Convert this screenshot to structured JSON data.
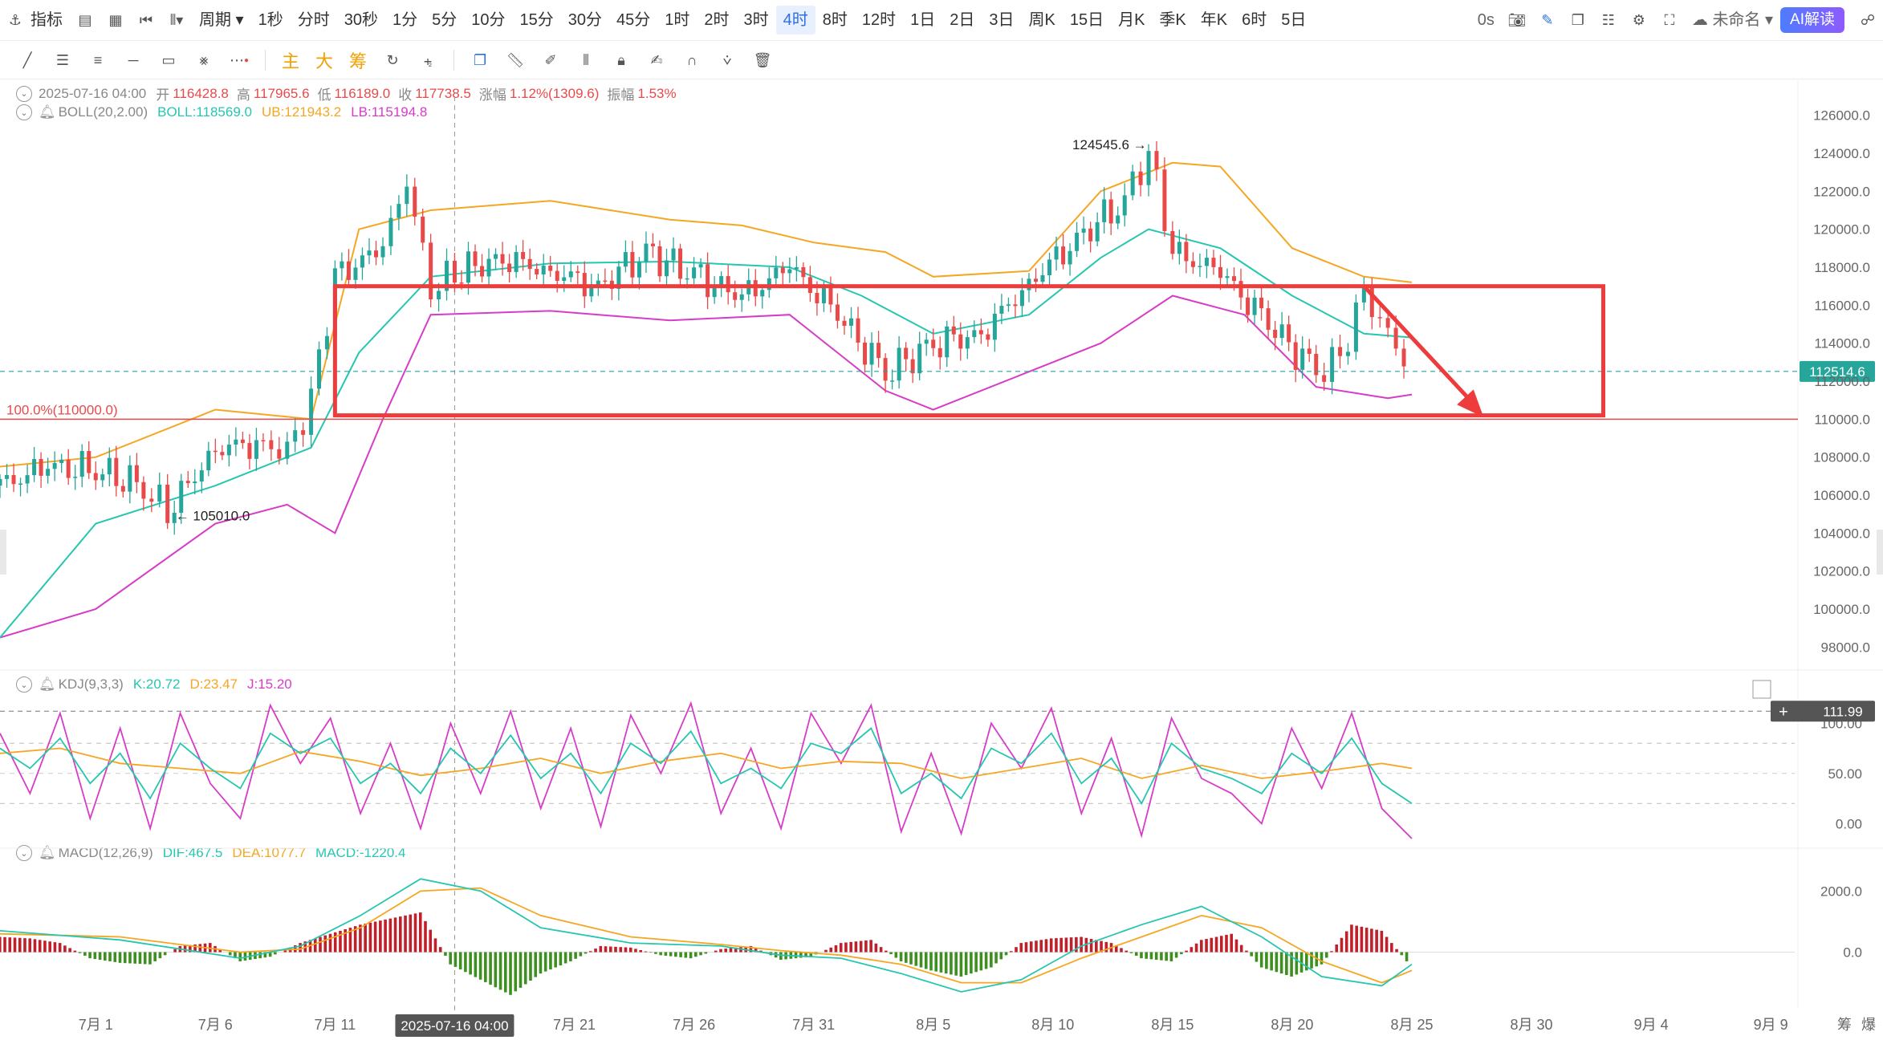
{
  "toolbar": {
    "left_items": [
      "指标",
      "周期"
    ],
    "periods": [
      "1秒",
      "分时",
      "30秒",
      "1分",
      "5分",
      "10分",
      "15分",
      "30分",
      "45分",
      "1时",
      "2时",
      "3时",
      "4时",
      "8时",
      "12时",
      "1日",
      "2日",
      "3日",
      "周K",
      "15日",
      "月K",
      "季K",
      "年K",
      "6时",
      "5日"
    ],
    "active_period": "4时",
    "countdown": "0s",
    "layout_name": "未命名",
    "ai_button": "AI解读"
  },
  "drawbar": {
    "chips": [
      "主",
      "大",
      "筹"
    ]
  },
  "ohlc": {
    "datetime": "2025-07-16 04:00",
    "open_label": "开",
    "open": "116428.8",
    "high_label": "高",
    "high": "117965.6",
    "low_label": "低",
    "low": "116189.0",
    "close_label": "收",
    "close": "117738.5",
    "change_label": "涨幅",
    "change": "1.12%(1309.6)",
    "amp_label": "振幅",
    "amp": "1.53%"
  },
  "boll": {
    "name": "BOLL(20,2.00)",
    "mid": "BOLL:118569.0",
    "ub": "UB:121943.2",
    "lb": "LB:115194.8"
  },
  "kdj": {
    "name": "KDJ(9,3,3)",
    "k": "K:20.72",
    "d": "D:23.47",
    "j": "J:15.20"
  },
  "macd": {
    "name": "MACD(12,26,9)",
    "dif": "DIF:467.5",
    "dea": "DEA:1077.7",
    "macd": "MACD:-1220.4"
  },
  "price_axis": {
    "ticks": [
      "126000.0",
      "124000.0",
      "122000.0",
      "120000.0",
      "118000.0",
      "116000.0",
      "114000.0",
      "112000.0",
      "110000.0",
      "108000.0",
      "106000.0",
      "104000.0",
      "102000.0",
      "100000.0",
      "98000.0"
    ],
    "current_price": "112514.6"
  },
  "kdj_axis": {
    "ticks": [
      "100.00",
      "50.00",
      "0.00"
    ],
    "crosshair_value": "111.99"
  },
  "macd_axis": {
    "ticks": [
      "2000.0",
      "0.0"
    ]
  },
  "time_axis": {
    "ticks": [
      "7月 1",
      "7月 6",
      "7月 11",
      "7月 21",
      "7月 26",
      "7月 31",
      "8月 5",
      "8月 10",
      "8月 15",
      "8月 20",
      "8月 25",
      "8月 30",
      "9月 4",
      "9月 9"
    ],
    "crosshair_label": "2025-07-16 04:00",
    "corner_labels": [
      "筹",
      "爆"
    ]
  },
  "annotations": {
    "high_marker": "124545.6",
    "low_marker": "105010.0",
    "fib_level": "100.0%(110000.0)"
  },
  "colors": {
    "up": "#26a69a",
    "down": "#e84a4a",
    "boll_mid": "#26c6b0",
    "boll_ub": "#f5a623",
    "boll_lb": "#d63cc8",
    "box": "#ee3b3b",
    "accent": "#2f6fe4"
  },
  "chart_data": {
    "type": "candlestick",
    "title": "",
    "interval": "4时",
    "y_range": [
      97000,
      127000
    ],
    "x_range": [
      "2025-06-27",
      "2025-09-10"
    ],
    "boll_mid_path": [
      [
        "2025-06-27",
        98500
      ],
      [
        "2025-07-01",
        104500
      ],
      [
        "2025-07-06",
        106500
      ],
      [
        "2025-07-10",
        108500
      ],
      [
        "2025-07-12",
        113500
      ],
      [
        "2025-07-15",
        117500
      ],
      [
        "2025-07-20",
        118200
      ],
      [
        "2025-07-25",
        118300
      ],
      [
        "2025-07-30",
        118000
      ],
      [
        "2025-08-02",
        116500
      ],
      [
        "2025-08-05",
        114500
      ],
      [
        "2025-08-09",
        115500
      ],
      [
        "2025-08-12",
        118500
      ],
      [
        "2025-08-14",
        120000
      ],
      [
        "2025-08-17",
        119000
      ],
      [
        "2025-08-20",
        116500
      ],
      [
        "2025-08-23",
        114500
      ],
      [
        "2025-08-25",
        114300
      ]
    ],
    "boll_ub_path": [
      [
        "2025-06-27",
        107500
      ],
      [
        "2025-07-01",
        108000
      ],
      [
        "2025-07-06",
        110500
      ],
      [
        "2025-07-10",
        110000
      ],
      [
        "2025-07-12",
        120000
      ],
      [
        "2025-07-15",
        121000
      ],
      [
        "2025-07-20",
        121500
      ],
      [
        "2025-07-25",
        120500
      ],
      [
        "2025-07-28",
        120200
      ],
      [
        "2025-07-31",
        119300
      ],
      [
        "2025-08-03",
        118800
      ],
      [
        "2025-08-05",
        117500
      ],
      [
        "2025-08-09",
        117800
      ],
      [
        "2025-08-12",
        122000
      ],
      [
        "2025-08-15",
        123500
      ],
      [
        "2025-08-17",
        123300
      ],
      [
        "2025-08-20",
        119000
      ],
      [
        "2025-08-23",
        117500
      ],
      [
        "2025-08-25",
        117200
      ]
    ],
    "boll_lb_path": [
      [
        "2025-06-27",
        98500
      ],
      [
        "2025-07-01",
        100000
      ],
      [
        "2025-07-06",
        104500
      ],
      [
        "2025-07-09",
        105500
      ],
      [
        "2025-07-11",
        104000
      ],
      [
        "2025-07-13",
        110000
      ],
      [
        "2025-07-15",
        115500
      ],
      [
        "2025-07-20",
        115700
      ],
      [
        "2025-07-25",
        115200
      ],
      [
        "2025-07-30",
        115500
      ],
      [
        "2025-08-03",
        111500
      ],
      [
        "2025-08-05",
        110500
      ],
      [
        "2025-08-09",
        112500
      ],
      [
        "2025-08-12",
        114000
      ],
      [
        "2025-08-15",
        116500
      ],
      [
        "2025-08-18",
        115500
      ],
      [
        "2025-08-21",
        111700
      ],
      [
        "2025-08-24",
        111100
      ],
      [
        "2025-08-25",
        111300
      ]
    ],
    "close_path": [
      [
        "2025-06-27",
        106500
      ],
      [
        "2025-06-29",
        107500
      ],
      [
        "2025-07-01",
        107300
      ],
      [
        "2025-07-03",
        106500
      ],
      [
        "2025-07-04",
        105100
      ],
      [
        "2025-07-06",
        108500
      ],
      [
        "2025-07-08",
        108700
      ],
      [
        "2025-07-09",
        108300
      ],
      [
        "2025-07-10",
        111000
      ],
      [
        "2025-07-11",
        117500
      ],
      [
        "2025-07-13",
        119000
      ],
      [
        "2025-07-14",
        122500
      ],
      [
        "2025-07-15",
        116800
      ],
      [
        "2025-07-16",
        117700
      ],
      [
        "2025-07-18",
        118500
      ],
      [
        "2025-07-20",
        117800
      ],
      [
        "2025-07-22",
        117000
      ],
      [
        "2025-07-24",
        118800
      ],
      [
        "2025-07-26",
        117600
      ],
      [
        "2025-07-28",
        116400
      ],
      [
        "2025-07-30",
        118000
      ],
      [
        "2025-08-01",
        115500
      ],
      [
        "2025-08-03",
        112400
      ],
      [
        "2025-08-05",
        114000
      ],
      [
        "2025-08-07",
        114500
      ],
      [
        "2025-08-09",
        117200
      ],
      [
        "2025-08-11",
        119500
      ],
      [
        "2025-08-13",
        121500
      ],
      [
        "2025-08-14",
        124000
      ],
      [
        "2025-08-15",
        118800
      ],
      [
        "2025-08-17",
        117700
      ],
      [
        "2025-08-19",
        115000
      ],
      [
        "2025-08-21",
        112500
      ],
      [
        "2025-08-22",
        113300
      ],
      [
        "2025-08-23",
        116800
      ],
      [
        "2025-08-24",
        114500
      ],
      [
        "2025-08-25",
        112514.6
      ]
    ],
    "highlight_box": {
      "x_start": "2025-07-11",
      "x_end": "2025-09-02",
      "y_low": 110200,
      "y_high": 117000
    },
    "arrow": {
      "from": [
        "2025-08-23",
        117000
      ],
      "to": [
        "2025-08-28",
        110100
      ]
    },
    "fib_line": 110000,
    "current_line": 112514.6,
    "kdj_range": [
      -15,
      125
    ],
    "kdj_k_path": [
      [
        0,
        75
      ],
      [
        1,
        55
      ],
      [
        2,
        85
      ],
      [
        3,
        40
      ],
      [
        4,
        70
      ],
      [
        5,
        25
      ],
      [
        6,
        80
      ],
      [
        7,
        55
      ],
      [
        8,
        35
      ],
      [
        9,
        90
      ],
      [
        10,
        70
      ],
      [
        11,
        85
      ],
      [
        12,
        40
      ],
      [
        13,
        60
      ],
      [
        14,
        30
      ],
      [
        15,
        75
      ],
      [
        16,
        50
      ],
      [
        17,
        88
      ],
      [
        18,
        45
      ],
      [
        19,
        70
      ],
      [
        20,
        30
      ],
      [
        21,
        80
      ],
      [
        22,
        60
      ],
      [
        23,
        92
      ],
      [
        24,
        40
      ],
      [
        25,
        55
      ],
      [
        26,
        35
      ],
      [
        27,
        80
      ],
      [
        28,
        70
      ],
      [
        29,
        95
      ],
      [
        30,
        30
      ],
      [
        31,
        50
      ],
      [
        32,
        25
      ],
      [
        33,
        75
      ],
      [
        34,
        60
      ],
      [
        35,
        90
      ],
      [
        36,
        40
      ],
      [
        37,
        65
      ],
      [
        38,
        20
      ],
      [
        39,
        80
      ],
      [
        40,
        55
      ],
      [
        41,
        45
      ],
      [
        42,
        30
      ],
      [
        43,
        70
      ],
      [
        44,
        50
      ],
      [
        45,
        85
      ],
      [
        46,
        40
      ],
      [
        47,
        20
      ]
    ],
    "kdj_d_path": [
      [
        0,
        70
      ],
      [
        2,
        75
      ],
      [
        4,
        60
      ],
      [
        6,
        55
      ],
      [
        8,
        50
      ],
      [
        10,
        72
      ],
      [
        12,
        62
      ],
      [
        14,
        48
      ],
      [
        16,
        55
      ],
      [
        18,
        65
      ],
      [
        20,
        50
      ],
      [
        22,
        62
      ],
      [
        24,
        70
      ],
      [
        26,
        55
      ],
      [
        28,
        62
      ],
      [
        30,
        60
      ],
      [
        32,
        45
      ],
      [
        34,
        55
      ],
      [
        36,
        65
      ],
      [
        38,
        45
      ],
      [
        40,
        58
      ],
      [
        42,
        45
      ],
      [
        44,
        52
      ],
      [
        46,
        60
      ],
      [
        47,
        55
      ]
    ],
    "kdj_j_path": [
      [
        0,
        90
      ],
      [
        1,
        30
      ],
      [
        2,
        110
      ],
      [
        3,
        5
      ],
      [
        4,
        95
      ],
      [
        5,
        -5
      ],
      [
        6,
        110
      ],
      [
        7,
        40
      ],
      [
        8,
        5
      ],
      [
        9,
        118
      ],
      [
        10,
        60
      ],
      [
        11,
        105
      ],
      [
        12,
        10
      ],
      [
        13,
        80
      ],
      [
        14,
        -5
      ],
      [
        15,
        100
      ],
      [
        16,
        30
      ],
      [
        17,
        112
      ],
      [
        18,
        15
      ],
      [
        19,
        95
      ],
      [
        20,
        -3
      ],
      [
        21,
        108
      ],
      [
        22,
        50
      ],
      [
        23,
        120
      ],
      [
        24,
        10
      ],
      [
        25,
        75
      ],
      [
        26,
        -5
      ],
      [
        27,
        110
      ],
      [
        28,
        60
      ],
      [
        29,
        118
      ],
      [
        30,
        -8
      ],
      [
        31,
        70
      ],
      [
        32,
        -10
      ],
      [
        33,
        100
      ],
      [
        34,
        55
      ],
      [
        35,
        115
      ],
      [
        36,
        10
      ],
      [
        37,
        85
      ],
      [
        38,
        -12
      ],
      [
        39,
        105
      ],
      [
        40,
        45
      ],
      [
        41,
        30
      ],
      [
        42,
        0
      ],
      [
        43,
        95
      ],
      [
        44,
        35
      ],
      [
        45,
        110
      ],
      [
        46,
        15
      ],
      [
        47,
        -15
      ]
    ],
    "macd_range": [
      -1800,
      2800
    ],
    "macd_dif_path": [
      [
        0,
        700
      ],
      [
        4,
        400
      ],
      [
        8,
        -200
      ],
      [
        10,
        200
      ],
      [
        12,
        1200
      ],
      [
        14,
        2400
      ],
      [
        16,
        2000
      ],
      [
        18,
        800
      ],
      [
        21,
        300
      ],
      [
        24,
        200
      ],
      [
        26,
        -100
      ],
      [
        28,
        -200
      ],
      [
        30,
        -700
      ],
      [
        32,
        -1300
      ],
      [
        34,
        -900
      ],
      [
        36,
        200
      ],
      [
        38,
        900
      ],
      [
        40,
        1500
      ],
      [
        42,
        500
      ],
      [
        44,
        -800
      ],
      [
        46,
        -1100
      ],
      [
        47,
        -400
      ]
    ],
    "macd_dea_path": [
      [
        0,
        600
      ],
      [
        4,
        500
      ],
      [
        8,
        0
      ],
      [
        10,
        100
      ],
      [
        12,
        800
      ],
      [
        14,
        2000
      ],
      [
        16,
        2100
      ],
      [
        18,
        1200
      ],
      [
        21,
        500
      ],
      [
        24,
        250
      ],
      [
        26,
        50
      ],
      [
        28,
        -100
      ],
      [
        30,
        -400
      ],
      [
        32,
        -1000
      ],
      [
        34,
        -1000
      ],
      [
        36,
        -200
      ],
      [
        38,
        500
      ],
      [
        40,
        1200
      ],
      [
        42,
        800
      ],
      [
        44,
        -300
      ],
      [
        46,
        -1000
      ],
      [
        47,
        -600
      ]
    ],
    "macd_hist": [
      [
        0,
        500
      ],
      [
        1,
        450
      ],
      [
        2,
        300
      ],
      [
        3,
        -200
      ],
      [
        4,
        -350
      ],
      [
        5,
        -400
      ],
      [
        6,
        200
      ],
      [
        7,
        300
      ],
      [
        8,
        -300
      ],
      [
        9,
        -150
      ],
      [
        10,
        300
      ],
      [
        11,
        600
      ],
      [
        12,
        900
      ],
      [
        13,
        1100
      ],
      [
        14,
        1300
      ],
      [
        15,
        -400
      ],
      [
        16,
        -900
      ],
      [
        17,
        -1400
      ],
      [
        18,
        -700
      ],
      [
        19,
        -300
      ],
      [
        20,
        200
      ],
      [
        21,
        150
      ],
      [
        22,
        -100
      ],
      [
        23,
        -200
      ],
      [
        24,
        100
      ],
      [
        25,
        200
      ],
      [
        26,
        -250
      ],
      [
        27,
        -150
      ],
      [
        28,
        300
      ],
      [
        29,
        400
      ],
      [
        30,
        -300
      ],
      [
        31,
        -600
      ],
      [
        32,
        -800
      ],
      [
        33,
        -500
      ],
      [
        34,
        300
      ],
      [
        35,
        450
      ],
      [
        36,
        500
      ],
      [
        37,
        300
      ],
      [
        38,
        -200
      ],
      [
        39,
        -300
      ],
      [
        40,
        400
      ],
      [
        41,
        600
      ],
      [
        42,
        -500
      ],
      [
        43,
        -800
      ],
      [
        44,
        -400
      ],
      [
        45,
        900
      ],
      [
        46,
        700
      ],
      [
        47,
        -500
      ]
    ]
  }
}
